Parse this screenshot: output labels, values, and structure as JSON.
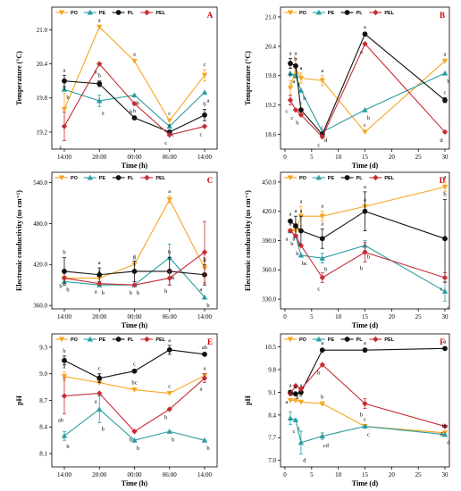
{
  "colors": {
    "PO": "#f5a623",
    "PE": "#2a9d9f",
    "PL": "#111111",
    "PEL": "#c62c35"
  },
  "markers": {
    "PO": "triangle-down",
    "PE": "triangle-up",
    "PL": "circle",
    "PEL": "diamond"
  },
  "chart_data": [
    {
      "panel": "A",
      "type": "line",
      "xlabel": "Time (h)",
      "ylabel": "Temperature (°C)",
      "x": [
        "14:00",
        "20:00",
        "00:00",
        "06:00",
        "14:00"
      ],
      "ylim": [
        18.9,
        21.4
      ],
      "yticks": [
        "19.2",
        "19.8",
        "20.4",
        "21.0"
      ],
      "series": [
        {
          "name": "PO",
          "values": [
            19.6,
            21.05,
            20.45,
            19.4,
            20.2
          ],
          "err": [
            0.28,
            0.0,
            0.0,
            0.0,
            0.1
          ],
          "letters": [
            "a",
            "a",
            "a",
            "c",
            "c"
          ]
        },
        {
          "name": "PE",
          "values": [
            19.95,
            19.75,
            19.85,
            19.3,
            19.9
          ],
          "err": [
            0.0,
            0.1,
            0.0,
            0.0,
            0.0
          ],
          "letters": [
            "b",
            "a",
            "b",
            "c",
            "a"
          ]
        },
        {
          "name": "PL",
          "values": [
            20.1,
            20.05,
            19.45,
            19.2,
            19.5
          ],
          "err": [
            0.1,
            0.05,
            0.0,
            0.0,
            0.1
          ],
          "letters": [
            "a",
            "b",
            "b",
            "c",
            "b"
          ]
        },
        {
          "name": "PEL",
          "values": [
            19.3,
            20.4,
            19.7,
            19.15,
            19.3
          ],
          "err": [
            0.25,
            0.0,
            0.0,
            0.0,
            0.0
          ],
          "letters": [
            "c",
            "a",
            "b",
            "c",
            "c"
          ]
        }
      ]
    },
    {
      "panel": "B",
      "type": "line",
      "xlabel": "Time (d)",
      "ylabel": "Temperature (°C)",
      "x": [
        1,
        2,
        3,
        7,
        15,
        30
      ],
      "xlim": [
        0,
        30
      ],
      "xticks": [
        "0",
        "5",
        "10",
        "15",
        "20",
        "25",
        "30"
      ],
      "ylim": [
        18.3,
        21.2
      ],
      "yticks": [
        "18.6",
        "19.2",
        "19.8",
        "20.4",
        "21.0"
      ],
      "series": [
        {
          "name": "PO",
          "values": [
            19.55,
            19.95,
            19.75,
            19.7,
            18.65,
            20.1
          ],
          "err": [
            0.15,
            0.2,
            0.1,
            0.1,
            0.0,
            0.0
          ],
          "letters": [
            "b",
            "a",
            "a",
            "a",
            "c",
            "a"
          ]
        },
        {
          "name": "PE",
          "values": [
            19.85,
            19.8,
            19.5,
            18.65,
            19.1,
            19.85
          ],
          "err": [
            0.0,
            0.0,
            0.0,
            0.0,
            0.0,
            0.0
          ],
          "letters": [
            "a",
            "c",
            "b",
            "d",
            "b",
            "b"
          ]
        },
        {
          "name": "PL",
          "values": [
            20.05,
            20.0,
            19.1,
            18.6,
            20.65,
            19.3
          ],
          "err": [
            0.1,
            0.0,
            0.0,
            0.0,
            0.0,
            0.05
          ],
          "letters": [
            "a",
            "b",
            "c",
            "c",
            "a",
            "c"
          ]
        },
        {
          "name": "PEL",
          "values": [
            19.3,
            19.1,
            19.0,
            18.55,
            20.45,
            18.65
          ],
          "err": [
            0.1,
            0.0,
            0.0,
            0.0,
            0.0,
            0.0
          ],
          "letters": [
            "c",
            "c",
            "b",
            "c",
            "a",
            "d"
          ]
        }
      ]
    },
    {
      "panel": "C",
      "type": "line",
      "xlabel": "Time (h)",
      "ylabel": "Electronic conductivity (us cm⁻¹)",
      "x": [
        "14:00",
        "20:00",
        "00:00",
        "06:00",
        "14:00"
      ],
      "ylim": [
        355,
        555
      ],
      "yticks": [
        "360.0",
        "420.0",
        "480.0",
        "540.0"
      ],
      "series": [
        {
          "name": "PO",
          "values": [
            400,
            400,
            420,
            515,
            415
          ],
          "err": [
            0.0,
            0.0,
            0.0,
            5,
            0.0
          ],
          "letters": [
            "a",
            "a",
            "a",
            "a",
            "c"
          ]
        },
        {
          "name": "PE",
          "values": [
            395,
            390,
            390,
            430,
            372
          ],
          "err": [
            0.0,
            0.0,
            0.0,
            20,
            0.0
          ],
          "letters": [
            "b",
            "b",
            "b",
            "b",
            "b"
          ]
        },
        {
          "name": "PL",
          "values": [
            410,
            405,
            410,
            410,
            405
          ],
          "err": [
            20,
            10,
            15,
            20,
            15
          ],
          "letters": [
            "b",
            "a",
            "a",
            "b",
            "b"
          ]
        },
        {
          "name": "PEL",
          "values": [
            400,
            392,
            390,
            400,
            438
          ],
          "err": [
            0.0,
            0.0,
            0.0,
            10,
            45
          ],
          "letters": [
            "b",
            "a",
            "b",
            "b",
            "a"
          ]
        }
      ]
    },
    {
      "panel": "D",
      "type": "line",
      "xlabel": "Time (d)",
      "ylabel": "Electronic conductivity (us cm⁻¹)",
      "x": [
        1,
        2,
        3,
        7,
        15,
        30
      ],
      "xlim": [
        0,
        30
      ],
      "xticks": [
        "0",
        "5",
        "10",
        "15",
        "20",
        "25",
        "30"
      ],
      "ylim": [
        320,
        460
      ],
      "yticks": [
        "330.0",
        "360.0",
        "390.0",
        "420.0",
        "450.0"
      ],
      "series": [
        {
          "name": "PO",
          "values": [
            400,
            400,
            415,
            415,
            425,
            445
          ],
          "err": [
            0.0,
            0.0,
            10,
            5,
            0.0,
            5
          ],
          "letters": [
            "a",
            "a",
            "a",
            "a",
            "a",
            "a"
          ]
        },
        {
          "name": "PE",
          "values": [
            400,
            395,
            375,
            372,
            385,
            338
          ],
          "err": [
            0.0,
            0.0,
            0.0,
            5,
            5,
            10
          ],
          "letters": [
            "a",
            "b",
            "bc",
            "b",
            "b",
            "c"
          ]
        },
        {
          "name": "PL",
          "values": [
            410,
            405,
            400,
            392,
            420,
            392
          ],
          "err": [
            0.0,
            10,
            15,
            10,
            20,
            40
          ],
          "letters": [
            "a",
            "a",
            "a",
            "a",
            "a",
            "b"
          ]
        },
        {
          "name": "PEL",
          "values": [
            400,
            395,
            385,
            352,
            378,
            352
          ],
          "err": [
            0.0,
            0.0,
            0.0,
            5,
            10,
            5
          ],
          "letters": [
            "a",
            "b",
            "b",
            "c",
            "b",
            "c"
          ]
        }
      ]
    },
    {
      "panel": "E",
      "type": "line",
      "xlabel": "Time (h)",
      "ylabel": "pH",
      "x": [
        "14:00",
        "20:00",
        "00:00",
        "06:00",
        "14:00"
      ],
      "ylim": [
        7.95,
        9.45
      ],
      "yticks": [
        "8.1",
        "8.4",
        "8.7",
        "9.0",
        "9.3"
      ],
      "series": [
        {
          "name": "PO",
          "values": [
            8.97,
            8.9,
            8.82,
            8.78,
            8.98
          ],
          "err": [
            0.05,
            0.0,
            0.0,
            0.0,
            0.0
          ],
          "letters": [
            "a",
            "a",
            "bc",
            "c",
            "a"
          ]
        },
        {
          "name": "PE",
          "values": [
            8.3,
            8.6,
            8.25,
            8.35,
            8.25
          ],
          "err": [
            0.05,
            0.15,
            0.0,
            0.0,
            0.0
          ],
          "letters": [
            "b",
            "b",
            "b",
            "b",
            "b"
          ]
        },
        {
          "name": "PL",
          "values": [
            9.15,
            8.95,
            9.03,
            9.27,
            9.22
          ],
          "err": [
            0.05,
            0.05,
            0.0,
            0.05,
            0.0
          ],
          "letters": [
            "b",
            "c",
            "c",
            "a",
            "ab"
          ]
        },
        {
          "name": "PEL",
          "values": [
            8.75,
            8.78,
            8.35,
            8.6,
            8.95
          ],
          "err": [
            0.2,
            0.0,
            0.0,
            0.0,
            0.05
          ],
          "letters": [
            "ab",
            "a",
            "b",
            "b",
            "a"
          ]
        }
      ]
    },
    {
      "panel": "F",
      "type": "line",
      "xlabel": "Time (d)",
      "ylabel": "pH",
      "x": [
        1,
        2,
        3,
        7,
        15,
        30
      ],
      "xlim": [
        0,
        30
      ],
      "xticks": [
        "0",
        "5",
        "10",
        "15",
        "20",
        "25",
        "30"
      ],
      "ylim": [
        6.8,
        10.9
      ],
      "yticks": [
        "7.0",
        "7.7",
        "8.4",
        "9.1",
        "9.8",
        "10.5"
      ],
      "series": [
        {
          "name": "PO",
          "values": [
            8.85,
            8.85,
            8.8,
            8.75,
            8.05,
            7.85
          ],
          "err": [
            0.0,
            0.0,
            0.0,
            0.05,
            0.0,
            0.0
          ],
          "letters": [
            "b",
            "b",
            "b",
            "b",
            "c",
            "bc"
          ]
        },
        {
          "name": "PE",
          "values": [
            8.3,
            8.25,
            7.55,
            7.75,
            8.05,
            7.8
          ],
          "err": [
            0.2,
            0.0,
            0.35,
            0.1,
            0.0,
            0.0
          ],
          "letters": [
            "c",
            "c",
            "d",
            "cd",
            "c",
            "d"
          ]
        },
        {
          "name": "PL",
          "values": [
            9.1,
            9.05,
            9.1,
            10.4,
            10.4,
            10.45
          ],
          "err": [
            0.0,
            0.0,
            0.0,
            0.0,
            0.0,
            0.0
          ],
          "letters": [
            "a",
            "a",
            "a",
            "a",
            "a",
            "a"
          ]
        },
        {
          "name": "PEL",
          "values": [
            9.05,
            9.3,
            9.2,
            9.95,
            8.75,
            8.05
          ],
          "err": [
            0.0,
            0.0,
            0.0,
            0.0,
            0.15,
            0.0
          ],
          "letters": [
            "a",
            "b",
            "b",
            "b",
            "b",
            "d"
          ]
        }
      ]
    }
  ]
}
